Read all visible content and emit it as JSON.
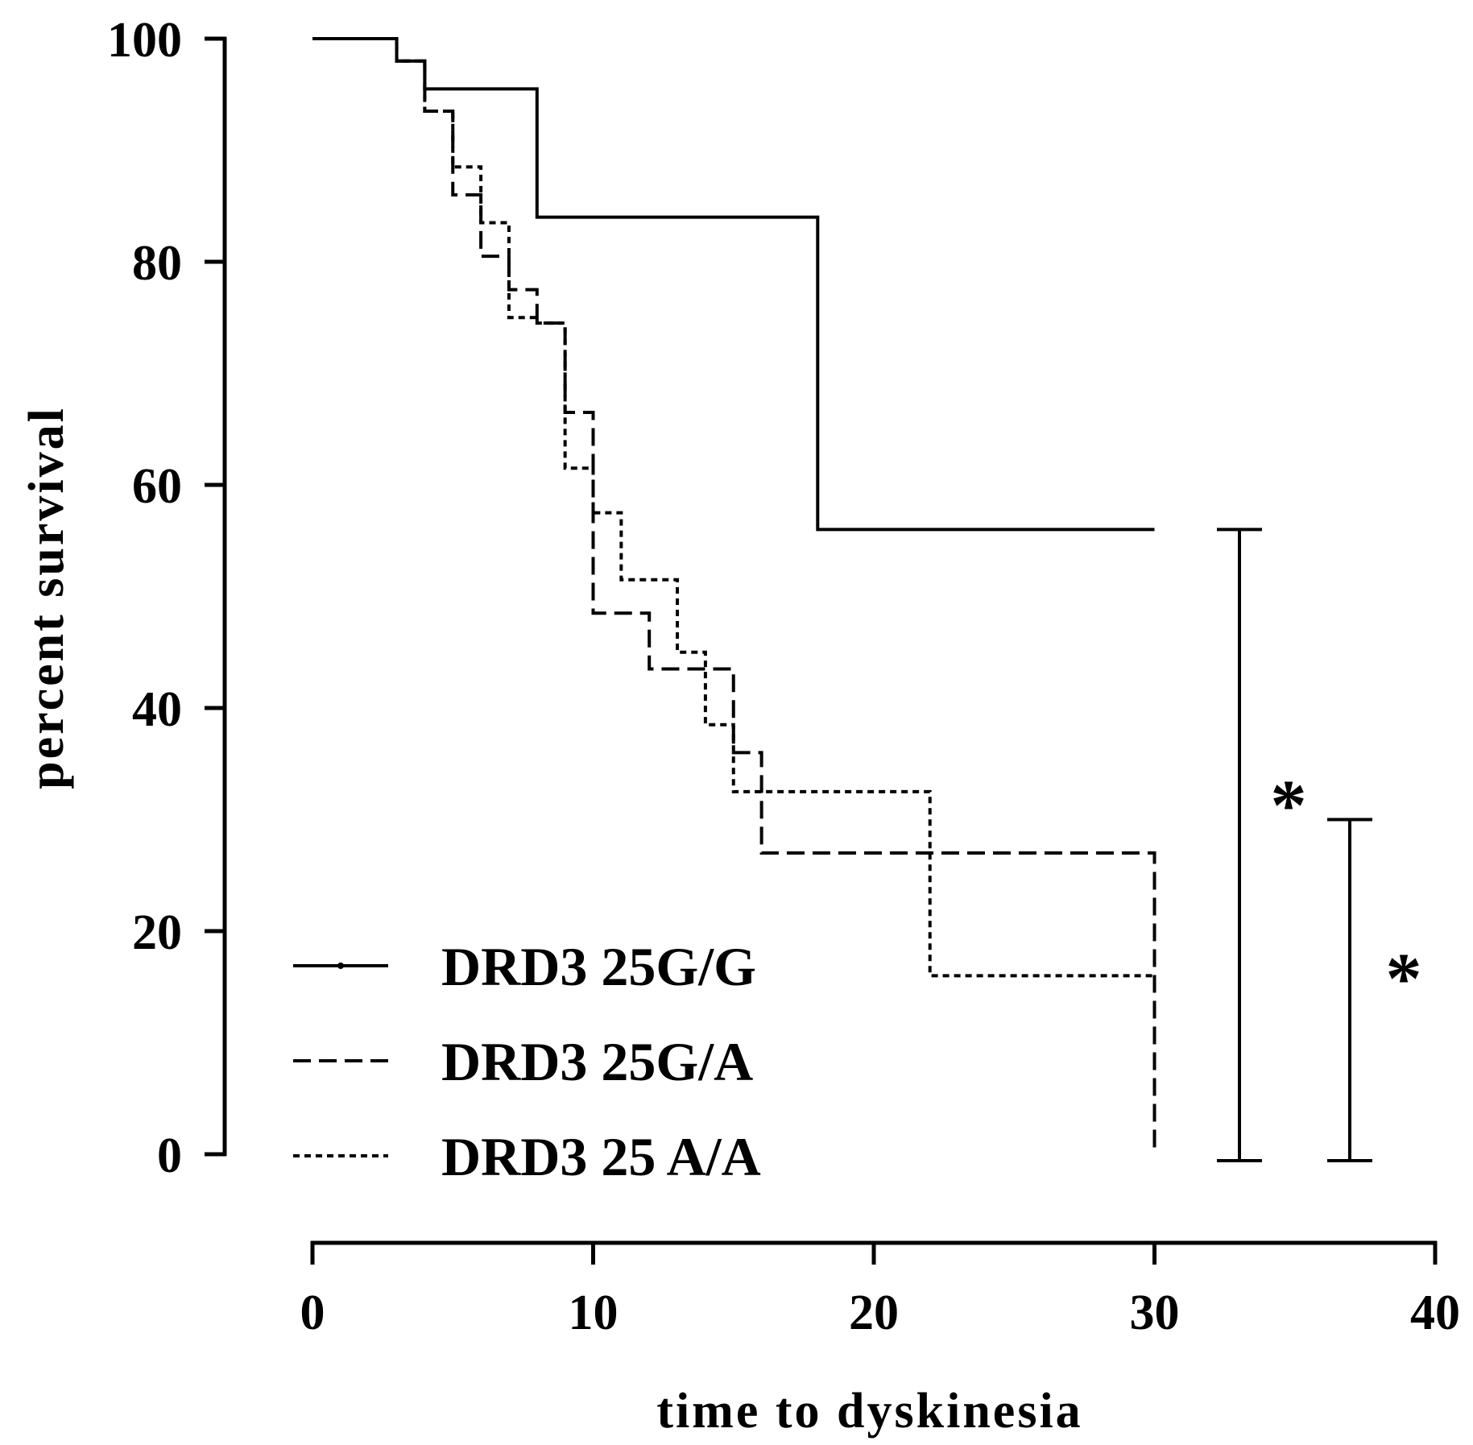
{
  "chart_data": {
    "type": "line",
    "xlabel": "time to dyskinesia",
    "ylabel": "percent survival",
    "xlim": [
      0,
      40
    ],
    "ylim": [
      0,
      100
    ],
    "xticks": [
      "0",
      "10",
      "20",
      "30",
      "40"
    ],
    "yticks": [
      "0",
      "20",
      "40",
      "60",
      "80",
      "100"
    ],
    "grid": false,
    "legend_position": "bottom-left",
    "series": [
      {
        "name": "DRD3 25G/G",
        "style": "solid",
        "steps": [
          [
            0,
            100
          ],
          [
            3,
            98
          ],
          [
            4,
            95.5
          ],
          [
            8,
            84
          ],
          [
            18,
            56
          ],
          [
            30,
            56
          ]
        ]
      },
      {
        "name": "DRD3 25G/A",
        "style": "dashed",
        "steps": [
          [
            0,
            100
          ],
          [
            3,
            98
          ],
          [
            4,
            93.5
          ],
          [
            5,
            86
          ],
          [
            6,
            80.5
          ],
          [
            7,
            77.5
          ],
          [
            8,
            74.5
          ],
          [
            9,
            66.5
          ],
          [
            10,
            48.5
          ],
          [
            12,
            43.5
          ],
          [
            15,
            36
          ],
          [
            16,
            27
          ],
          [
            30,
            27
          ],
          [
            30,
            0
          ]
        ]
      },
      {
        "name": "DRD3 25 A/A",
        "style": "dotted",
        "steps": [
          [
            0,
            100
          ],
          [
            3,
            98
          ],
          [
            4,
            93.5
          ],
          [
            5,
            88.5
          ],
          [
            6,
            83.5
          ],
          [
            7,
            75
          ],
          [
            8,
            74.5
          ],
          [
            9,
            61.5
          ],
          [
            10,
            57.5
          ],
          [
            11,
            51.5
          ],
          [
            13,
            45
          ],
          [
            14,
            38.5
          ],
          [
            15,
            32.5
          ],
          [
            22,
            16
          ],
          [
            30,
            16
          ]
        ]
      }
    ],
    "significance": [
      {
        "label": "*",
        "range": [
          0,
          56
        ]
      },
      {
        "label": "*",
        "range": [
          0,
          30
        ]
      }
    ]
  }
}
